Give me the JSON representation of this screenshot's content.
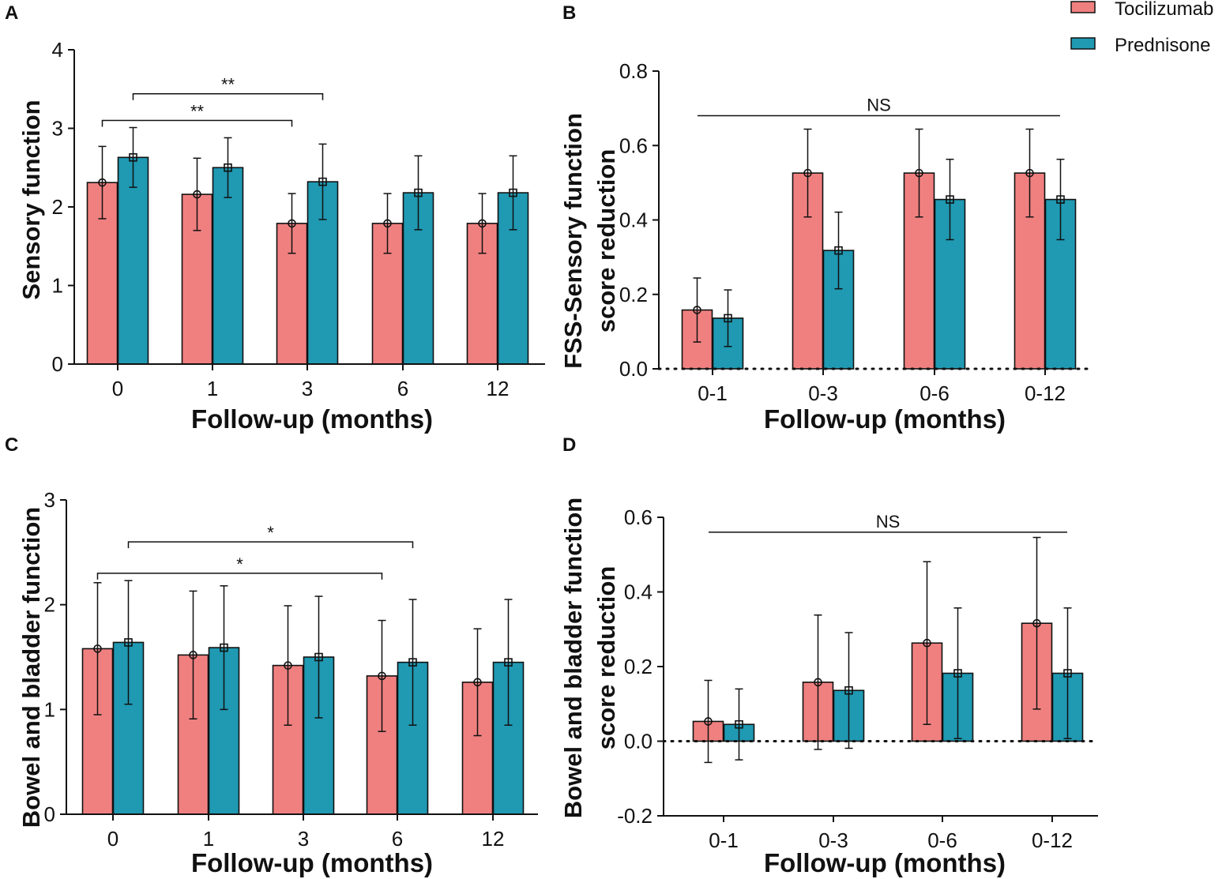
{
  "legend": {
    "items": [
      {
        "label": "Tocilizumab",
        "color": "#f08080"
      },
      {
        "label": "Prednisone",
        "color": "#2099b2"
      }
    ]
  },
  "chart_data": [
    {
      "panel": "A",
      "type": "bar",
      "xlabel": "Follow-up (months)",
      "ylabel": "Sensory function",
      "categories": [
        "0",
        "1",
        "3",
        "6",
        "12"
      ],
      "ylim": [
        0,
        4
      ],
      "yticks": [
        "0",
        "1",
        "2",
        "3",
        "4"
      ],
      "series": [
        {
          "name": "Tocilizumab",
          "values": [
            2.31,
            2.16,
            1.79,
            1.79,
            1.79
          ],
          "errors": [
            0.46,
            0.46,
            0.38,
            0.38,
            0.38
          ]
        },
        {
          "name": "Prednisone",
          "values": [
            2.63,
            2.5,
            2.32,
            2.18,
            2.18
          ],
          "errors": [
            0.38,
            0.38,
            0.48,
            0.47,
            0.47
          ]
        }
      ],
      "annotations": [
        {
          "label": "**",
          "from": "Tocilizumab 0",
          "to": "Tocilizumab 3",
          "y": 3.1
        },
        {
          "label": "**",
          "from": "Prednisone 0",
          "to": "Prednisone 3",
          "y": 3.44
        }
      ]
    },
    {
      "panel": "B",
      "type": "bar",
      "xlabel": "Follow-up (months)",
      "ylabel": [
        "FSS-Sensory function",
        "score reduction"
      ],
      "categories": [
        "0-1",
        "0-3",
        "0-6",
        "0-12"
      ],
      "ylim": [
        0,
        0.8
      ],
      "yticks": [
        "0.0",
        "0.2",
        "0.4",
        "0.6",
        "0.8"
      ],
      "series": [
        {
          "name": "Tocilizumab",
          "values": [
            0.158,
            0.526,
            0.526,
            0.526
          ],
          "errors": [
            0.086,
            0.118,
            0.118,
            0.118
          ]
        },
        {
          "name": "Prednisone",
          "values": [
            0.136,
            0.318,
            0.455,
            0.455
          ],
          "errors": [
            0.076,
            0.103,
            0.108,
            0.108
          ]
        }
      ],
      "annotations": [
        {
          "label": "NS",
          "from": "0-1",
          "to": "0-12",
          "y": 0.68
        }
      ]
    },
    {
      "panel": "C",
      "type": "bar",
      "xlabel": "Follow-up (months)",
      "ylabel": "Bowel and bladder function",
      "categories": [
        "0",
        "1",
        "3",
        "6",
        "12"
      ],
      "ylim": [
        0,
        3
      ],
      "yticks": [
        "0",
        "1",
        "2",
        "3"
      ],
      "series": [
        {
          "name": "Tocilizumab",
          "values": [
            1.58,
            1.52,
            1.42,
            1.32,
            1.26
          ],
          "errors": [
            0.63,
            0.61,
            0.57,
            0.53,
            0.51
          ]
        },
        {
          "name": "Prednisone",
          "values": [
            1.64,
            1.59,
            1.5,
            1.45,
            1.45
          ],
          "errors": [
            0.59,
            0.59,
            0.58,
            0.6,
            0.6
          ]
        }
      ],
      "annotations": [
        {
          "label": "*",
          "from": "Tocilizumab 0",
          "to": "Tocilizumab 6",
          "y": 2.3
        },
        {
          "label": "*",
          "from": "Prednisone 0",
          "to": "Prednisone 6",
          "y": 2.6
        }
      ]
    },
    {
      "panel": "D",
      "type": "bar",
      "xlabel": "Follow-up (months)",
      "ylabel": [
        "Bowel and bladder function",
        "score reduction"
      ],
      "categories": [
        "0-1",
        "0-3",
        "0-6",
        "0-12"
      ],
      "ylim": [
        -0.2,
        0.6
      ],
      "yticks": [
        "-0.2",
        "0.0",
        "0.2",
        "0.4",
        "0.6"
      ],
      "series": [
        {
          "name": "Tocilizumab",
          "values": [
            0.053,
            0.158,
            0.263,
            0.316
          ],
          "errors": [
            0.11,
            0.18,
            0.218,
            0.23
          ]
        },
        {
          "name": "Prednisone",
          "values": [
            0.045,
            0.136,
            0.182,
            0.182
          ],
          "errors": [
            0.095,
            0.155,
            0.175,
            0.175
          ]
        }
      ],
      "annotations": [
        {
          "label": "NS",
          "from": "0-1",
          "to": "0-12",
          "y": 0.56
        }
      ]
    }
  ]
}
